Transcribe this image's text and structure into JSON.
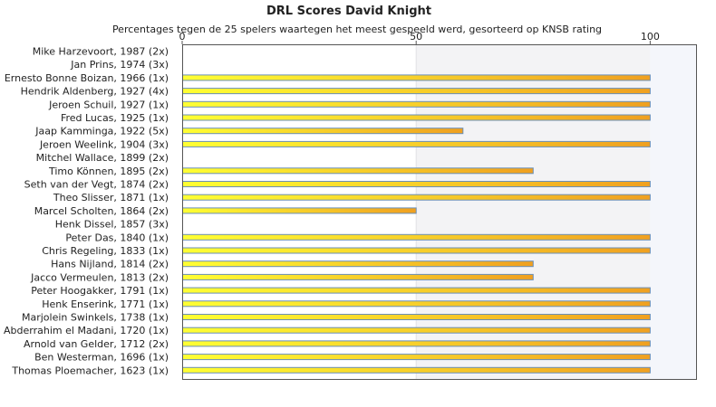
{
  "chart_data": {
    "type": "bar",
    "orientation": "horizontal",
    "title": "DRL Scores David Knight",
    "subtitle": "Percentages tegen de 25 spelers waartegen het meest gespeeld werd, gesorteerd op KNSB rating",
    "xlim": [
      0,
      110
    ],
    "xticks": [
      0,
      50,
      100
    ],
    "xtick_labels": [
      "0",
      "50",
      "100"
    ],
    "grid": false,
    "legend": "none",
    "colors": {
      "bar_start": "#ffff33",
      "bar_end": "#f0a020",
      "bar_border": "#6a8fb8",
      "band_light": "#f3f3f5",
      "band_blue": "#f4f6fb"
    },
    "categories": [
      "Mike Harzevoort, 1987 (2x)",
      "Jan Prins, 1974 (3x)",
      "Ernesto Bonne Boizan, 1966 (1x)",
      "Hendrik Aldenberg, 1927 (4x)",
      "Jeroen Schuil, 1927 (1x)",
      "Fred Lucas, 1925 (1x)",
      "Jaap Kamminga, 1922 (5x)",
      "Jeroen Weelink, 1904 (3x)",
      "Mitchel Wallace, 1899 (2x)",
      "Timo Können, 1895 (2x)",
      "Seth van der Vegt, 1874 (2x)",
      "Theo Slisser, 1871 (1x)",
      "Marcel Scholten, 1864 (2x)",
      "Henk Dissel, 1857 (3x)",
      "Peter Das, 1840 (1x)",
      "Chris Regeling, 1833 (1x)",
      "Hans Nijland, 1814 (2x)",
      "Jacco Vermeulen, 1813 (2x)",
      "Peter Hoogakker, 1791 (1x)",
      "Henk Enserink, 1771 (1x)",
      "Marjolein Swinkels, 1738 (1x)",
      "Abderrahim el Madani, 1720 (1x)",
      "Arnold van Gelder, 1712 (2x)",
      "Ben Westerman, 1696 (1x)",
      "Thomas Ploemacher, 1623 (1x)"
    ],
    "values": [
      0,
      0,
      100,
      100,
      100,
      100,
      60,
      100,
      0,
      75,
      100,
      100,
      50,
      0,
      100,
      100,
      75,
      75,
      100,
      100,
      100,
      100,
      100,
      100,
      100
    ]
  }
}
